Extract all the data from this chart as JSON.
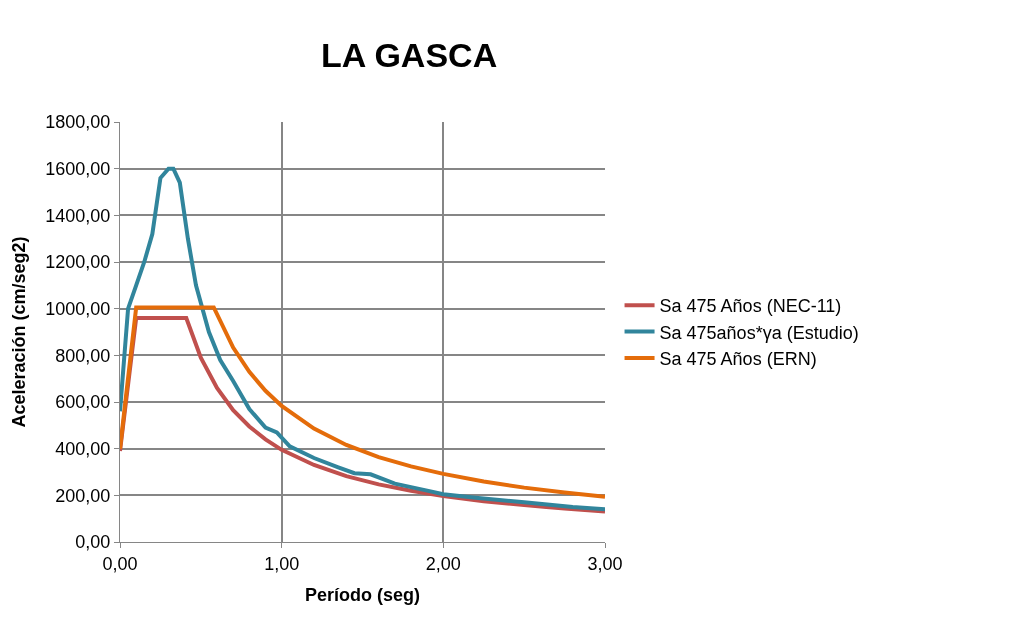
{
  "chart_data": {
    "type": "line",
    "title": "LA GASCA",
    "xlabel": "Período (seg)",
    "ylabel": "Aceleración (cm/seg2)",
    "xlim": [
      0,
      3
    ],
    "xticks": [
      {
        "value": 0,
        "label": "0,00"
      },
      {
        "value": 1,
        "label": "1,00"
      },
      {
        "value": 2,
        "label": "2,00"
      },
      {
        "value": 3,
        "label": "3,00"
      }
    ],
    "ylim": [
      0,
      1800
    ],
    "yticks": [
      {
        "value": 0,
        "label": "0,00"
      },
      {
        "value": 200,
        "label": "200,00"
      },
      {
        "value": 400,
        "label": "400,00"
      },
      {
        "value": 600,
        "label": "600,00"
      },
      {
        "value": 800,
        "label": "800,00"
      },
      {
        "value": 1000,
        "label": "1000,00"
      },
      {
        "value": 1200,
        "label": "1200,00"
      },
      {
        "value": 1400,
        "label": "1400,00"
      },
      {
        "value": 1600,
        "label": "1600,00"
      },
      {
        "value": 1800,
        "label": "1800,00"
      }
    ],
    "grid": true,
    "legend": "right",
    "marker": "none",
    "line_style": "solid",
    "series": [
      {
        "name": "Sa 475 Años (NEC-11)",
        "color": "#c0504d",
        "x": [
          0,
          0.1,
          0.41,
          0.5,
          0.6,
          0.7,
          0.8,
          0.9,
          1.0,
          1.2,
          1.4,
          1.6,
          1.8,
          2.0,
          2.25,
          2.5,
          2.75,
          3.0
        ],
        "values": [
          390,
          960,
          960,
          790,
          660,
          565,
          495,
          440,
          395,
          330,
          282,
          247,
          220,
          197,
          175,
          158,
          143,
          131
        ]
      },
      {
        "name": "Sa 475años*γa (Estudio)",
        "color": "#31859c",
        "x": [
          0,
          0.05,
          0.1,
          0.15,
          0.2,
          0.25,
          0.3,
          0.33,
          0.37,
          0.42,
          0.47,
          0.55,
          0.62,
          0.7,
          0.8,
          0.9,
          0.97,
          1.05,
          1.2,
          1.35,
          1.45,
          1.55,
          1.7,
          1.9,
          2.0,
          2.2,
          2.5,
          2.8,
          3.0
        ],
        "values": [
          560,
          1000,
          1100,
          1200,
          1320,
          1560,
          1600,
          1600,
          1540,
          1300,
          1100,
          900,
          780,
          690,
          570,
          490,
          470,
          410,
          360,
          320,
          295,
          290,
          250,
          220,
          205,
          190,
          170,
          150,
          140
        ]
      },
      {
        "name": "Sa 475 Años (ERN)",
        "color": "#e46c0a",
        "x": [
          0,
          0.1,
          0.58,
          0.7,
          0.8,
          0.9,
          1.0,
          1.2,
          1.4,
          1.6,
          1.8,
          2.0,
          2.25,
          2.5,
          2.75,
          3.0
        ],
        "values": [
          400,
          1005,
          1005,
          833,
          729,
          648,
          583,
          486,
          416,
          364,
          324,
          292,
          259,
          233,
          212,
          194
        ]
      }
    ]
  }
}
